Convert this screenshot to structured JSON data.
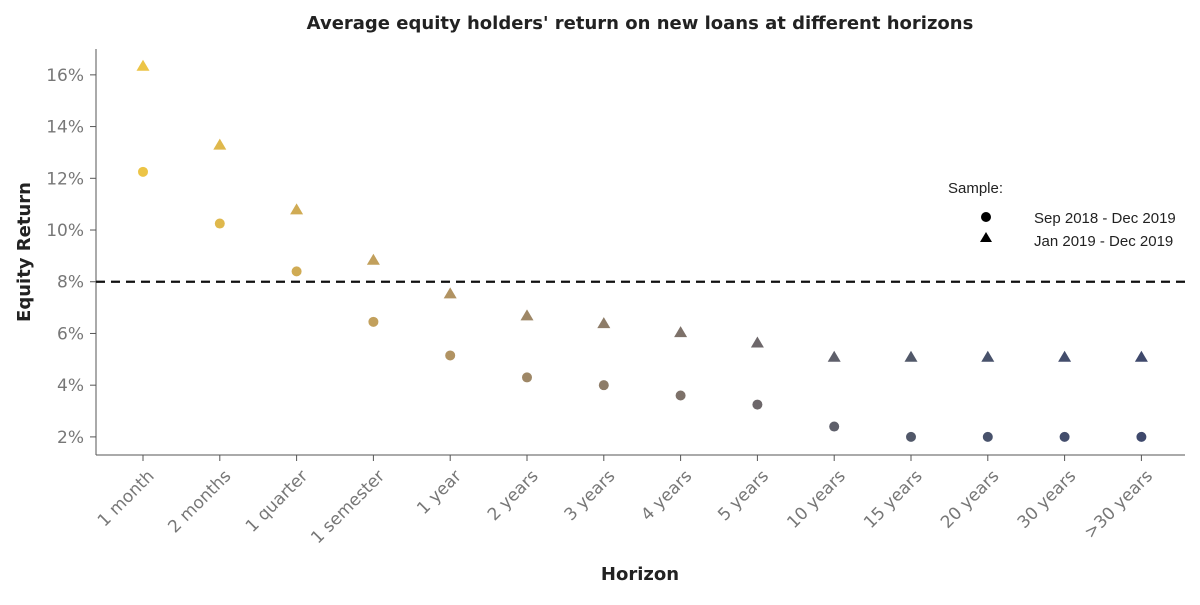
{
  "chart_data": {
    "type": "scatter",
    "title": "Average equity holders' return on new loans at different horizons",
    "xlabel": "Horizon",
    "ylabel": "Equity Return",
    "categories": [
      "1 month",
      "2 months",
      "1 quarter",
      "1 semester",
      "1 year",
      "2 years",
      "3 years",
      "4 years",
      "5 years",
      "10 years",
      "15 years",
      "20 years",
      "30 years",
      ">30 years"
    ],
    "yticks": [
      "2%",
      "4%",
      "6%",
      "8%",
      "10%",
      "12%",
      "14%",
      "16%"
    ],
    "ytick_values": [
      2,
      4,
      6,
      8,
      10,
      12,
      14,
      16
    ],
    "ylim": [
      1.3,
      17
    ],
    "reference_line": {
      "y": 8,
      "style": "dashed"
    },
    "legend": {
      "title": "Sample:",
      "position": "right"
    },
    "series": [
      {
        "name": "Sep 2018 - Dec 2019",
        "marker": "circle",
        "values": [
          12.25,
          10.25,
          8.4,
          6.45,
          5.15,
          4.3,
          4.0,
          3.6,
          3.25,
          2.4,
          2.0,
          2.0,
          2.0,
          2.0
        ]
      },
      {
        "name": "Jan 2019 - Dec 2019",
        "marker": "triangle",
        "values": [
          16.35,
          13.3,
          10.8,
          8.85,
          7.55,
          6.7,
          6.4,
          6.05,
          5.65,
          5.1,
          5.1,
          5.1,
          5.1,
          5.1
        ]
      }
    ],
    "colors": [
      "#ecc446",
      "#dfb84c",
      "#d0ab54",
      "#c2a05c",
      "#b19362",
      "#9e8766",
      "#8d7c68",
      "#7d7169",
      "#6d676a",
      "#5e5f6a",
      "#515869",
      "#48526b",
      "#434d6c",
      "#3f496c"
    ],
    "grid": false
  }
}
